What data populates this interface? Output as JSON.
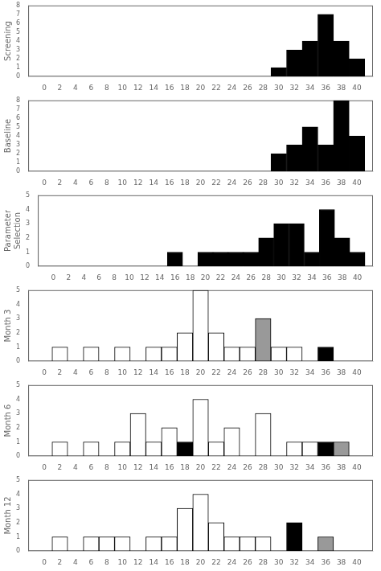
{
  "chart_data": [
    {
      "type": "bar",
      "y_label": "Screening",
      "x": [
        30,
        32,
        34,
        36,
        38,
        40
      ],
      "values": [
        1,
        3,
        4,
        7,
        4,
        2
      ],
      "colors": [
        "#000000",
        "#000000",
        "#000000",
        "#000000",
        "#000000",
        "#000000"
      ],
      "xlim": [
        -1,
        41
      ],
      "xticks": [
        0,
        2,
        4,
        6,
        8,
        10,
        12,
        14,
        16,
        18,
        20,
        22,
        24,
        26,
        28,
        30,
        32,
        34,
        36,
        38,
        40
      ],
      "ylim": [
        0,
        8
      ],
      "yticks": [
        0,
        1,
        2,
        3,
        4,
        5,
        6,
        7,
        8
      ],
      "grid": false
    },
    {
      "type": "bar",
      "y_label": "Baseline",
      "x": [
        30,
        32,
        34,
        36,
        38,
        40
      ],
      "values": [
        2,
        3,
        5,
        3,
        8,
        4
      ],
      "colors": [
        "#000000",
        "#000000",
        "#000000",
        "#000000",
        "#000000",
        "#000000"
      ],
      "xlim": [
        -1,
        41
      ],
      "xticks": [
        0,
        2,
        4,
        6,
        8,
        10,
        12,
        14,
        16,
        18,
        20,
        22,
        24,
        26,
        28,
        30,
        32,
        34,
        36,
        38,
        40
      ],
      "ylim": [
        0,
        8
      ],
      "yticks": [
        0,
        1,
        2,
        3,
        4,
        5,
        6,
        7,
        8
      ],
      "grid": false
    },
    {
      "type": "bar",
      "y_label": "Parameter\nSelection",
      "x": [
        16,
        20,
        22,
        24,
        26,
        28,
        30,
        32,
        34,
        36,
        38,
        40
      ],
      "values": [
        1,
        1,
        1,
        1,
        1,
        2,
        3,
        3,
        1,
        4,
        2,
        1
      ],
      "colors": [
        "#000000",
        "#000000",
        "#000000",
        "#000000",
        "#000000",
        "#000000",
        "#000000",
        "#000000",
        "#000000",
        "#000000",
        "#000000",
        "#000000"
      ],
      "xlim": [
        -1,
        41
      ],
      "xticks": [
        0,
        2,
        4,
        6,
        8,
        10,
        12,
        14,
        16,
        18,
        20,
        22,
        24,
        26,
        28,
        30,
        32,
        34,
        36,
        38,
        40
      ],
      "ylim": [
        0,
        5
      ],
      "yticks": [
        0,
        1,
        2,
        3,
        4,
        5
      ],
      "grid": false
    },
    {
      "type": "bar",
      "y_label": "Month 3",
      "x": [
        2,
        6,
        10,
        14,
        16,
        18,
        20,
        22,
        24,
        26,
        28,
        30,
        32,
        36
      ],
      "values": [
        1,
        1,
        1,
        1,
        1,
        2,
        5,
        2,
        1,
        1,
        3,
        1,
        1,
        1
      ],
      "colors": [
        "#ffffff",
        "#ffffff",
        "#ffffff",
        "#ffffff",
        "#ffffff",
        "#ffffff",
        "#ffffff",
        "#ffffff",
        "#ffffff",
        "#ffffff",
        "#999999",
        "#ffffff",
        "#ffffff",
        "#000000"
      ],
      "xlim": [
        -1,
        41
      ],
      "xticks": [
        0,
        2,
        4,
        6,
        8,
        10,
        12,
        14,
        16,
        18,
        20,
        22,
        24,
        26,
        28,
        30,
        32,
        34,
        36,
        38,
        40
      ],
      "ylim": [
        0,
        5
      ],
      "yticks": [
        0,
        1,
        2,
        3,
        4,
        5
      ],
      "grid": false
    },
    {
      "type": "bar",
      "y_label": "Month 6",
      "x": [
        2,
        6,
        10,
        12,
        14,
        16,
        18,
        20,
        22,
        24,
        28,
        32,
        34,
        36,
        38
      ],
      "values": [
        1,
        1,
        1,
        3,
        1,
        2,
        1,
        4,
        1,
        2,
        3,
        1,
        1,
        1,
        1
      ],
      "colors": [
        "#ffffff",
        "#ffffff",
        "#ffffff",
        "#ffffff",
        "#ffffff",
        "#ffffff",
        "#000000",
        "#ffffff",
        "#ffffff",
        "#ffffff",
        "#ffffff",
        "#ffffff",
        "#ffffff",
        "#000000",
        "#999999"
      ],
      "xlim": [
        -1,
        41
      ],
      "xticks": [
        0,
        2,
        4,
        6,
        8,
        10,
        12,
        14,
        16,
        18,
        20,
        22,
        24,
        26,
        28,
        30,
        32,
        34,
        36,
        38,
        40
      ],
      "ylim": [
        0,
        5
      ],
      "yticks": [
        0,
        1,
        2,
        3,
        4,
        5
      ],
      "grid": false
    },
    {
      "type": "bar",
      "y_label": "Month 12",
      "x": [
        2,
        6,
        8,
        10,
        14,
        16,
        18,
        20,
        22,
        24,
        26,
        28,
        32,
        36
      ],
      "values": [
        1,
        1,
        1,
        1,
        1,
        1,
        3,
        4,
        2,
        1,
        1,
        1,
        2,
        1
      ],
      "colors": [
        "#ffffff",
        "#ffffff",
        "#ffffff",
        "#ffffff",
        "#ffffff",
        "#ffffff",
        "#ffffff",
        "#ffffff",
        "#ffffff",
        "#ffffff",
        "#ffffff",
        "#ffffff",
        "#000000",
        "#999999"
      ],
      "xlim": [
        -1,
        41
      ],
      "xticks": [
        0,
        2,
        4,
        6,
        8,
        10,
        12,
        14,
        16,
        18,
        20,
        22,
        24,
        26,
        28,
        30,
        32,
        34,
        36,
        38,
        40
      ],
      "ylim": [
        0,
        5
      ],
      "yticks": [
        0,
        1,
        2,
        3,
        4,
        5
      ],
      "grid": false
    }
  ]
}
